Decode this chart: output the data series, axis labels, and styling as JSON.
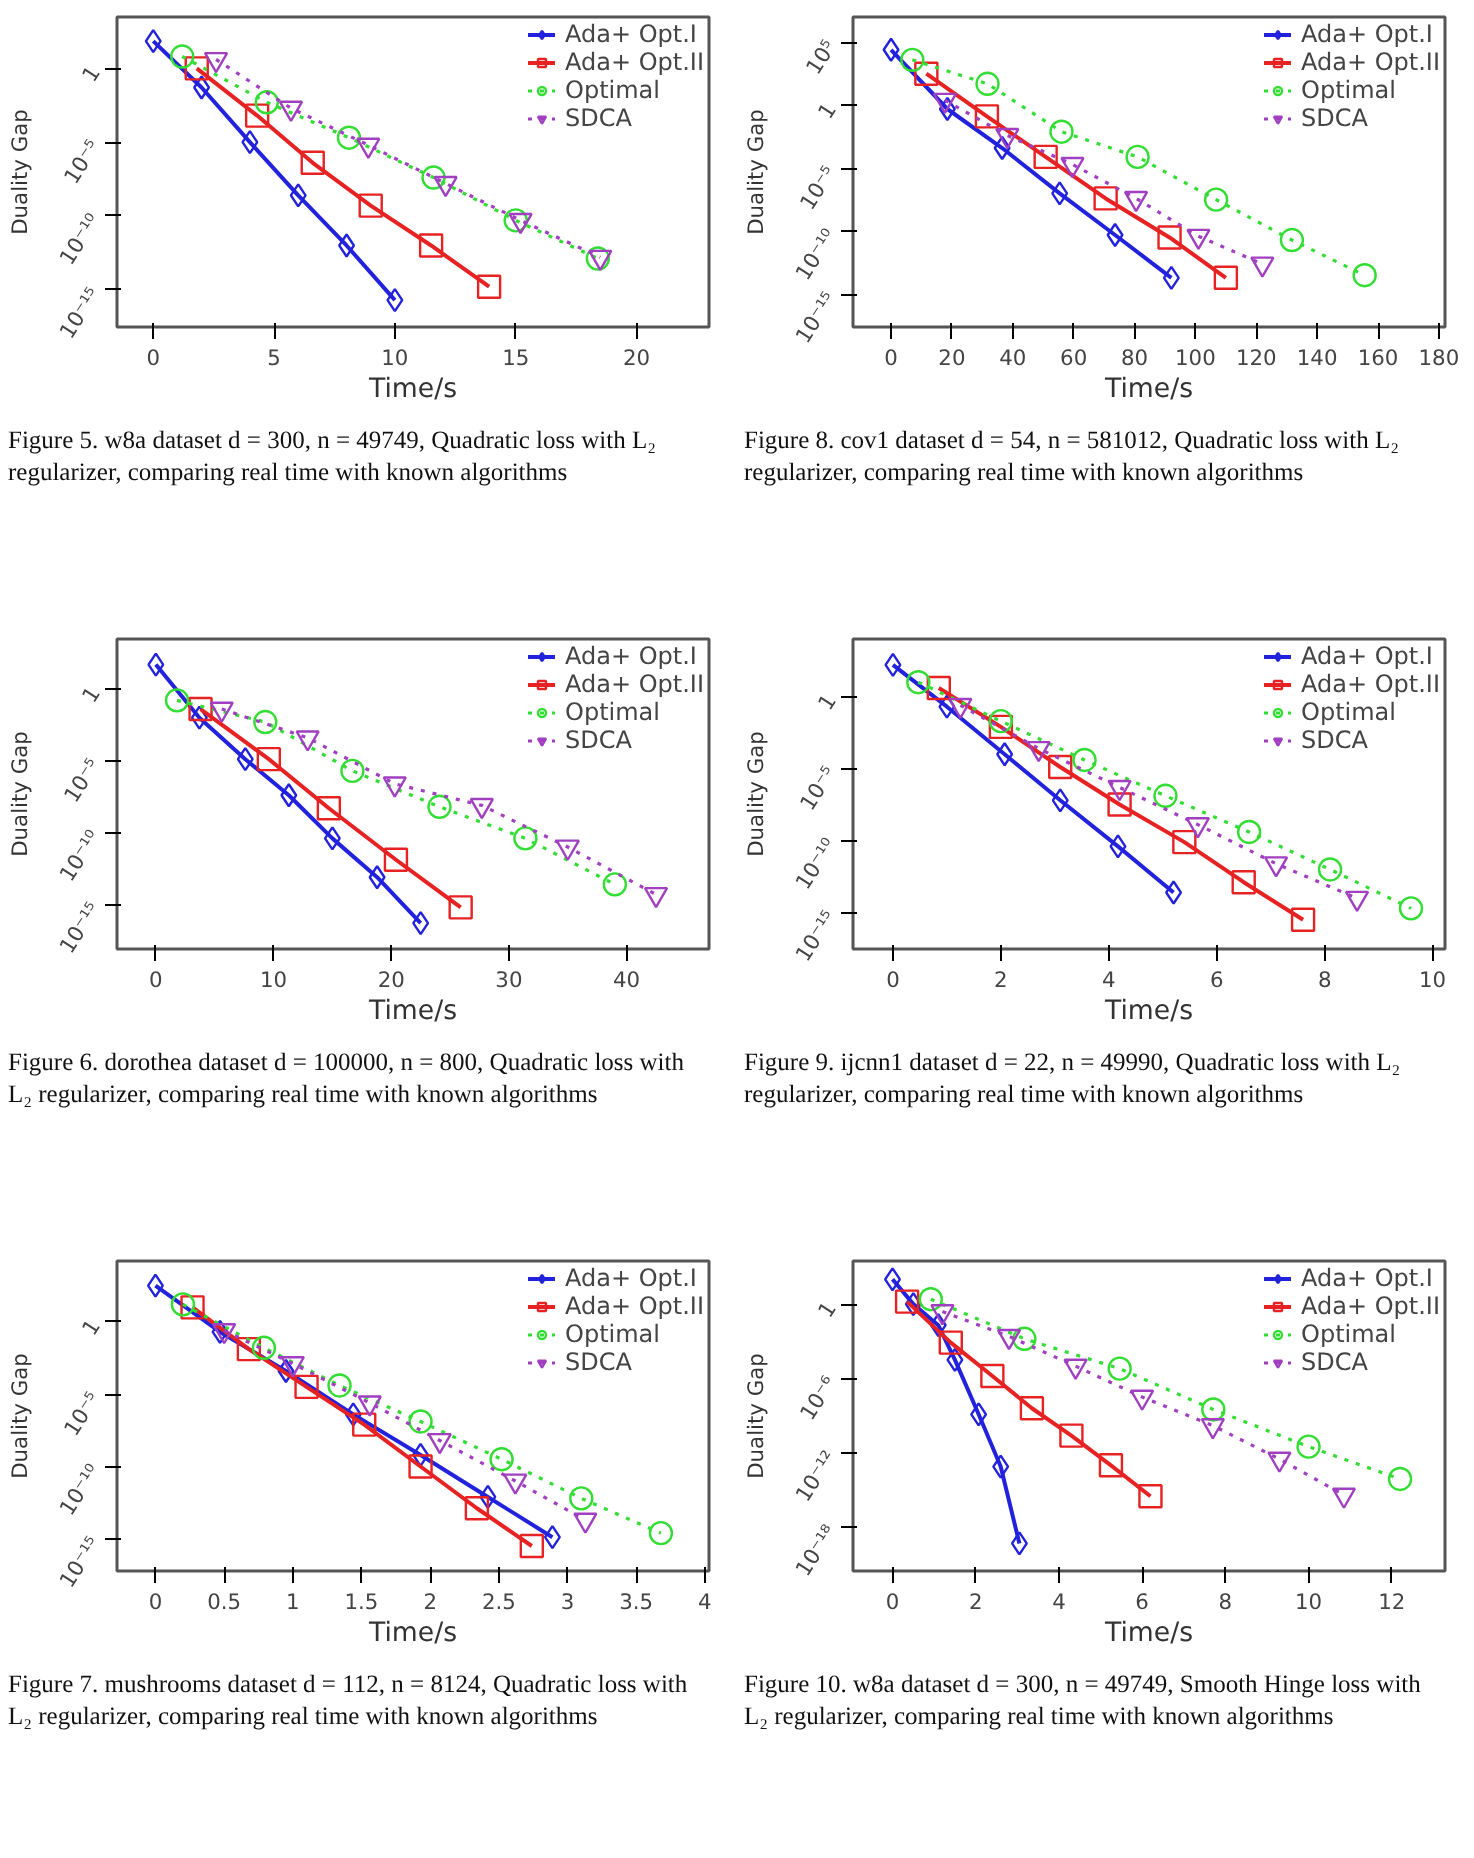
{
  "chart_data": [
    {
      "type": "line",
      "xlabel": "Time/s",
      "ylabel": "Duality Gap",
      "log": "y",
      "grid": false,
      "legend": "top right",
      "xlim": [
        -1.5,
        23
      ],
      "xticks": [
        0,
        5,
        10,
        15,
        20
      ],
      "ylim": [
        3e-18,
        3000.0
      ],
      "yticks": [
        1,
        {
          "value": 1e-05,
          "label": "10⁻⁵"
        },
        {
          "value": 1e-10,
          "label": "10⁻¹⁰"
        },
        {
          "value": 1e-15,
          "label": "10⁻¹⁵"
        }
      ],
      "annotations": [
        "Figure 5. w8a dataset d = 300, n = 49749, Quadratic loss with L₂ regularizer, comparing real time with known algorithms"
      ],
      "series": [
        {
          "name": "Ada+ Opt.I",
          "color": "#2222dd",
          "marker": "diamond",
          "line_style": "solid",
          "x": [
            0,
            2,
            4,
            6,
            8,
            10
          ],
          "values": [
            70,
            0.05,
            1e-05,
            2.5e-09,
            1e-12,
            2e-16
          ]
        },
        {
          "name": "Ada+ Opt.II",
          "color": "#e62222",
          "marker": "square",
          "line_style": "solid",
          "x": [
            1.8,
            4.3,
            6.6,
            9.0,
            11.5,
            13.9
          ],
          "values": [
            1,
            0.00063,
            4e-07,
            5e-10,
            1e-12,
            1.6e-15
          ]
        },
        {
          "name": "Optimal",
          "color": "#33dd33",
          "marker": "circle",
          "line_style": "dotted",
          "x": [
            1.2,
            4.7,
            8.1,
            11.6,
            15.0,
            18.4
          ],
          "values": [
            6.3,
            0.005,
            2e-05,
            4e-08,
            5e-11,
            1.3e-13
          ]
        },
        {
          "name": "SDCA",
          "color": "#a040c0",
          "marker": "triangle",
          "line_style": "dotted",
          "x": [
            2.6,
            5.7,
            8.9,
            12.1,
            15.2,
            18.5
          ],
          "values": [
            4,
            0.002,
            6.3e-06,
            1.6e-08,
            5e-11,
            1.6e-13
          ]
        }
      ]
    },
    {
      "type": "line",
      "xlabel": "Time/s",
      "ylabel": "Duality Gap",
      "log": "y",
      "grid": false,
      "legend": "top right",
      "xlim": [
        -3.3,
        47
      ],
      "xticks": [
        0,
        10,
        20,
        30,
        40
      ],
      "ylim": [
        8e-19,
        3000.0
      ],
      "yticks": [
        1,
        {
          "value": 1e-05,
          "label": "10⁻⁵"
        },
        {
          "value": 1e-10,
          "label": "10⁻¹⁰"
        },
        {
          "value": 1e-15,
          "label": "10⁻¹⁵"
        }
      ],
      "annotations": [
        "Figure 6. dorothea dataset d = 100000, n = 800, Quadratic loss with L₂ regularizer, comparing real time with known algorithms"
      ],
      "series": [
        {
          "name": "Ada+ Opt.I",
          "color": "#2222dd",
          "marker": "diamond",
          "line_style": "solid",
          "x": [
            0,
            3.7,
            7.6,
            11.3,
            15.0,
            18.8,
            22.5
          ],
          "values": [
            50,
            0.01,
            1.3e-05,
            4e-08,
            4e-11,
            7.9e-14,
            5e-17
          ]
        },
        {
          "name": "Ada+ Opt.II",
          "color": "#e62222",
          "marker": "square",
          "line_style": "solid",
          "x": [
            3.8,
            9.6,
            14.7,
            20.4,
            25.9
          ],
          "values": [
            0.04,
            1.3e-05,
            5e-09,
            1.3e-12,
            6.3e-16
          ]
        },
        {
          "name": "Optimal",
          "color": "#33dd33",
          "marker": "circle",
          "line_style": "dotted",
          "x": [
            1.8,
            9.3,
            16.7,
            24.1,
            31.4,
            39.0
          ],
          "values": [
            0.16,
            0.005,
            2e-06,
            6.3e-09,
            4e-11,
            2.5e-14
          ]
        },
        {
          "name": "SDCA",
          "color": "#a040c0",
          "marker": "triangle",
          "line_style": "dotted",
          "x": [
            5.6,
            12.9,
            20.3,
            27.7,
            35.0,
            42.5
          ],
          "values": [
            0.04,
            0.0004,
            2.5e-07,
            7.9e-09,
            1e-11,
            5e-15
          ]
        }
      ]
    },
    {
      "type": "line",
      "xlabel": "Time/s",
      "ylabel": "Duality Gap",
      "log": "y",
      "grid": false,
      "legend": "top right",
      "xlim": [
        -0.28,
        4.03
      ],
      "xticks": [
        0,
        0.5,
        1,
        1.5,
        2,
        2.5,
        3,
        3.5,
        4
      ],
      "ylim": [
        6e-18,
        16000.0
      ],
      "yticks": [
        1,
        {
          "value": 1e-05,
          "label": "10⁻⁵"
        },
        {
          "value": 1e-10,
          "label": "10⁻¹⁰"
        },
        {
          "value": 1e-15,
          "label": "10⁻¹⁵"
        }
      ],
      "annotations": [
        "Figure 7. mushrooms dataset d = 112, n = 8124, Quadratic loss with L₂ regularizer, comparing real time with known algorithms"
      ],
      "series": [
        {
          "name": "Ada+ Opt.I",
          "color": "#2222dd",
          "marker": "diamond",
          "line_style": "solid",
          "x": [
            0,
            0.47,
            0.95,
            1.44,
            1.93,
            2.42,
            2.89
          ],
          "values": [
            316,
            0.2,
            0.0004,
            4e-07,
            6.3e-10,
            7.9e-13,
            1.3e-15
          ]
        },
        {
          "name": "Ada+ Opt.II",
          "color": "#e62222",
          "marker": "square",
          "line_style": "solid",
          "x": [
            0.27,
            0.68,
            1.1,
            1.52,
            1.93,
            2.34,
            2.74
          ],
          "values": [
            10,
            0.013,
            3.2e-05,
            7.9e-08,
            1e-10,
            1.3e-13,
            3.2e-16
          ]
        },
        {
          "name": "Optimal",
          "color": "#33dd33",
          "marker": "circle",
          "line_style": "dotted",
          "x": [
            0.2,
            0.79,
            1.34,
            1.93,
            2.52,
            3.1,
            3.68
          ],
          "values": [
            16,
            0.016,
            4e-05,
            1.3e-07,
            3.2e-10,
            6.3e-13,
            2.5e-15
          ]
        },
        {
          "name": "SDCA",
          "color": "#a040c0",
          "marker": "triangle",
          "line_style": "dotted",
          "x": [
            0.5,
            1.0,
            1.56,
            2.07,
            2.62,
            3.13
          ],
          "values": [
            0.25,
            0.0013,
            2.5e-06,
            6.3e-09,
            1e-11,
            2e-14
          ]
        }
      ]
    },
    {
      "type": "line",
      "xlabel": "Time/s",
      "ylabel": "Duality Gap",
      "log": "y",
      "grid": false,
      "legend": "top right",
      "xlim": [
        -12.5,
        182
      ],
      "xticks": [
        0,
        20,
        40,
        60,
        80,
        100,
        120,
        140,
        160,
        180
      ],
      "ylim": [
        2.5e-18,
        10000000.0
      ],
      "yticks": [
        {
          "value": 100000.0,
          "label": "10⁵"
        },
        1,
        {
          "value": 1e-05,
          "label": "10⁻⁵"
        },
        {
          "value": 1e-10,
          "label": "10⁻¹⁰"
        },
        {
          "value": 1e-15,
          "label": "10⁻¹⁵"
        }
      ],
      "annotations": [
        "Figure 8. cov1 dataset d = 54, n = 581012, Quadratic loss with L₂ regularizer, comparing real time with known algorithms"
      ],
      "series": [
        {
          "name": "Ada+ Opt.I",
          "color": "#2222dd",
          "marker": "diamond",
          "line_style": "solid",
          "x": [
            0,
            18.5,
            36.5,
            55.4,
            73.6,
            92.1
          ],
          "values": [
            25000.0,
            0.5,
            0.0004,
            1e-07,
            5e-11,
            2e-14
          ]
        },
        {
          "name": "Ada+ Opt.II",
          "color": "#e62222",
          "marker": "square",
          "line_style": "solid",
          "x": [
            11.6,
            31.5,
            50.8,
            70.5,
            91.5,
            110
          ],
          "values": [
            316,
            0.13,
            7.9e-05,
            4e-08,
            3.2e-11,
            2e-14
          ]
        },
        {
          "name": "Optimal",
          "color": "#33dd33",
          "marker": "circle",
          "line_style": "dotted",
          "x": [
            7,
            31.7,
            56,
            81,
            106.8,
            131.7,
            155.6
          ],
          "values": [
            4000.0,
            50,
            0.0079,
            7.9e-05,
            3.2e-08,
            2e-11,
            3.2e-14
          ]
        },
        {
          "name": "SDCA",
          "color": "#a040c0",
          "marker": "triangle",
          "line_style": "dotted",
          "x": [
            17.7,
            38.2,
            59.6,
            80.5,
            101,
            122
          ],
          "values": [
            2.5,
            0.004,
            2e-05,
            4e-08,
            4e-11,
            2.5e-13
          ]
        }
      ]
    },
    {
      "type": "line",
      "xlabel": "Time/s",
      "ylabel": "Duality Gap",
      "log": "y",
      "grid": false,
      "legend": "top right",
      "xlim": [
        -0.74,
        10.23
      ],
      "xticks": [
        0,
        2,
        4,
        6,
        8,
        10
      ],
      "ylim": [
        3e-18,
        10000.0
      ],
      "yticks": [
        1,
        {
          "value": 1e-05,
          "label": "10⁻⁵"
        },
        {
          "value": 1e-10,
          "label": "10⁻¹⁰"
        },
        {
          "value": 1e-15,
          "label": "10⁻¹⁵"
        }
      ],
      "annotations": [
        "Figure 9. ijcnn1 dataset d = 22, n = 49990, Quadratic loss with L₂ regularizer, comparing real time with known algorithms"
      ],
      "series": [
        {
          "name": "Ada+ Opt.I",
          "color": "#2222dd",
          "marker": "diamond",
          "line_style": "solid",
          "x": [
            0,
            1.0,
            2.07,
            3.1,
            4.17,
            5.2
          ],
          "values": [
            160,
            0.2,
            0.0001,
            6.3e-08,
            4e-11,
            2.5e-14
          ]
        },
        {
          "name": "Ada+ Opt.II",
          "color": "#e62222",
          "marker": "square",
          "line_style": "solid",
          "x": [
            0.85,
            2.0,
            3.1,
            4.2,
            5.4,
            6.5,
            7.6
          ],
          "values": [
            4,
            0.0079,
            1.3e-05,
            3.2e-08,
            7.9e-11,
            1.3e-13,
            3.2e-16
          ]
        },
        {
          "name": "Optimal",
          "color": "#33dd33",
          "marker": "circle",
          "line_style": "dotted",
          "x": [
            0.47,
            2.0,
            3.55,
            5.05,
            6.6,
            8.1,
            9.6
          ],
          "values": [
            10,
            0.02,
            4e-05,
            1.3e-07,
            4e-10,
            1e-12,
            2e-15
          ]
        },
        {
          "name": "SDCA",
          "color": "#a040c0",
          "marker": "triangle",
          "line_style": "dotted",
          "x": [
            1.25,
            2.7,
            4.2,
            5.65,
            7.1,
            8.6
          ],
          "values": [
            0.25,
            0.00025,
            5e-07,
            1.3e-09,
            2.5e-12,
            1e-14
          ]
        }
      ]
    },
    {
      "type": "line",
      "xlabel": "Time/s",
      "ylabel": "Duality Gap",
      "log": "y",
      "grid": false,
      "legend": "top right",
      "xlim": [
        -0.95,
        13.28
      ],
      "xticks": [
        0,
        2,
        4,
        6,
        8,
        10,
        12
      ],
      "ylim": [
        3e-22,
        3000.0
      ],
      "yticks": [
        1,
        {
          "value": 1e-06,
          "label": "10⁻⁶"
        },
        {
          "value": 1e-12,
          "label": "10⁻¹²"
        },
        {
          "value": 1e-18,
          "label": "10⁻¹⁸"
        }
      ],
      "annotations": [
        "Figure 10. w8a dataset d = 300, n = 49749, Smooth Hinge loss with L₂ regularizer, comparing real time with known algorithms"
      ],
      "series": [
        {
          "name": "Ada+ Opt.I",
          "color": "#2222dd",
          "marker": "diamond",
          "line_style": "solid",
          "x": [
            0,
            0.5,
            1.1,
            1.5,
            2.07,
            2.6,
            3.05
          ],
          "values": [
            100,
            1,
            0.02,
            3.2e-05,
            1.3e-09,
            7.9e-14,
            5e-20
          ]
        },
        {
          "name": "Ada+ Opt.II",
          "color": "#e62222",
          "marker": "square",
          "line_style": "solid",
          "x": [
            0.35,
            1.4,
            2.4,
            3.35,
            4.3,
            5.25,
            6.2
          ],
          "values": [
            1.6,
            0.00079,
            1.6e-06,
            4e-09,
            2.5e-11,
            1e-13,
            3.2e-16
          ]
        },
        {
          "name": "Optimal",
          "color": "#33dd33",
          "marker": "circle",
          "line_style": "dotted",
          "x": [
            0.92,
            3.17,
            5.46,
            7.71,
            10.0,
            12.2
          ],
          "values": [
            2.5,
            0.0016,
            6.3e-06,
            3.2e-09,
            3.2e-12,
            7.9e-15
          ]
        },
        {
          "name": "SDCA",
          "color": "#a040c0",
          "marker": "triangle",
          "line_style": "dotted",
          "x": [
            1.2,
            2.8,
            4.4,
            6.0,
            7.7,
            9.3,
            10.85
          ],
          "values": [
            0.25,
            0.0025,
            1e-05,
            3.2e-08,
            1.6e-10,
            3.2e-13,
            4e-16
          ]
        }
      ]
    }
  ]
}
